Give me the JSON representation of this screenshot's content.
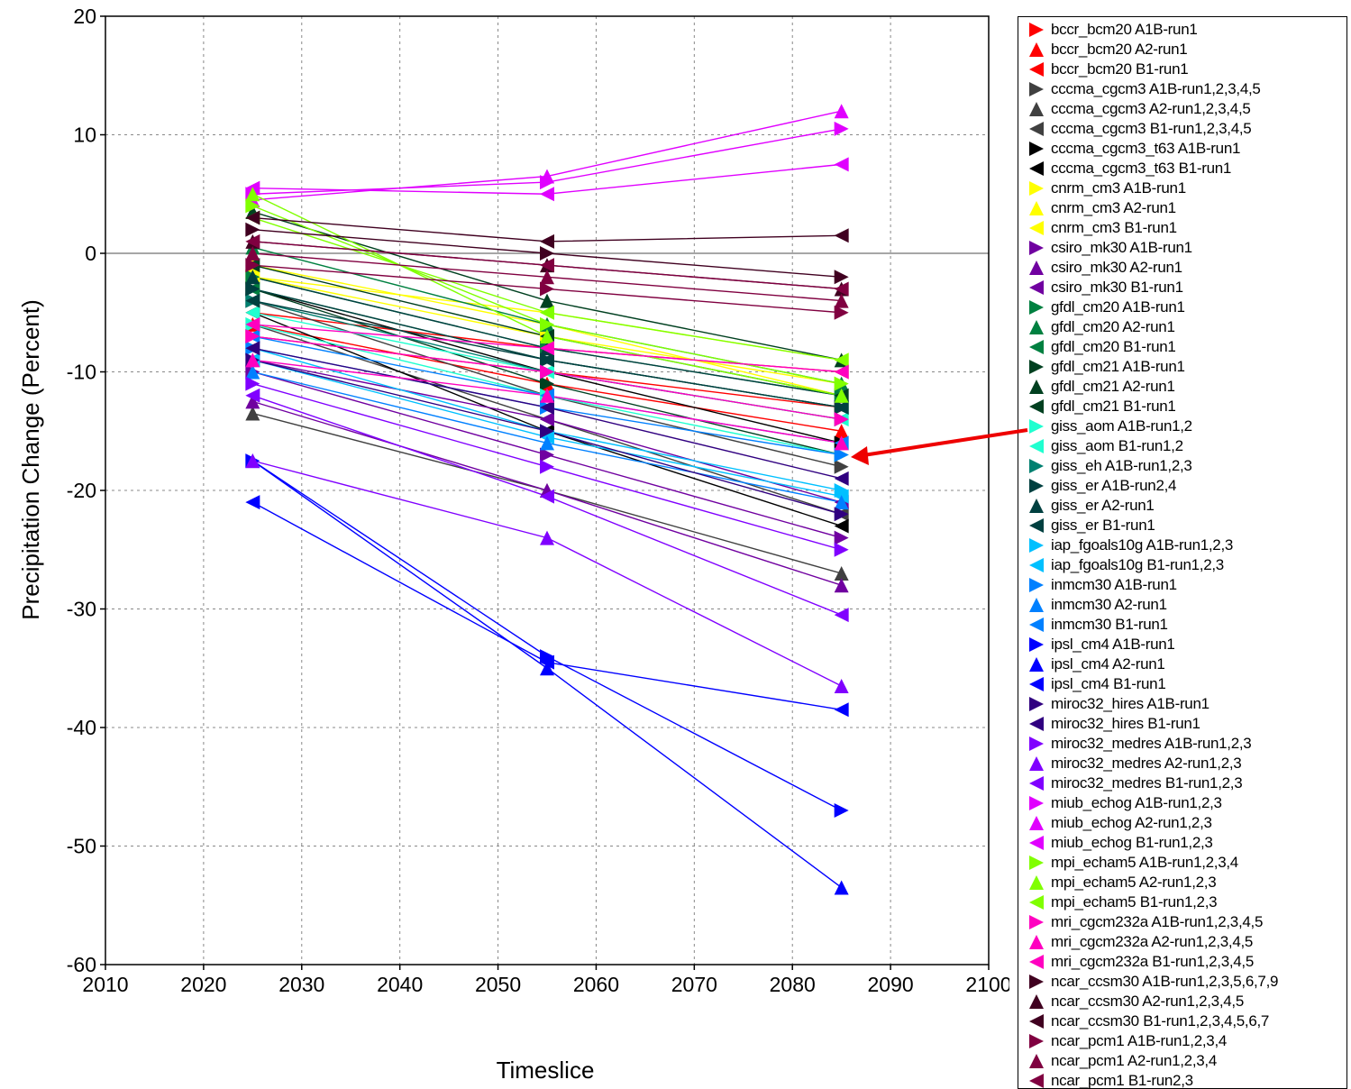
{
  "chart_data": {
    "type": "line",
    "xlabel": "Timeslice",
    "ylabel": "Precipitation Change (Percent)",
    "xlim": [
      2010,
      2100
    ],
    "ylim": [
      -60,
      20
    ],
    "x_ticks": [
      2010,
      2020,
      2030,
      2040,
      2050,
      2060,
      2070,
      2080,
      2090,
      2100
    ],
    "y_ticks": [
      20,
      10,
      0,
      -10,
      -20,
      -30,
      -40,
      -50,
      -60
    ],
    "grid": true,
    "legend_placement": "right",
    "x": [
      2025,
      2055,
      2085
    ],
    "series": [
      {
        "name": "bccr_bcm20 A1B-run1",
        "color": "#ff0000",
        "marker": "right",
        "values": [
          -7,
          -10,
          -13
        ]
      },
      {
        "name": "bccr_bcm20 A2-run1",
        "color": "#ff0000",
        "marker": "up",
        "values": [
          -6,
          -11,
          -15
        ]
      },
      {
        "name": "bccr_bcm20 B1-run1",
        "color": "#ff0000",
        "marker": "left",
        "values": [
          -5,
          -8,
          -10
        ]
      },
      {
        "name": "cccma_cgcm3 A1B-run1,2,3,4,5",
        "color": "#404040",
        "marker": "right",
        "values": [
          -4,
          -12,
          -18
        ]
      },
      {
        "name": "cccma_cgcm3 A2-run1,2,3,4,5",
        "color": "#404040",
        "marker": "up",
        "values": [
          -13.5,
          -20,
          -27
        ]
      },
      {
        "name": "cccma_cgcm3 B1-run1,2,3,4,5",
        "color": "#404040",
        "marker": "left",
        "values": [
          -6,
          -14,
          -22
        ]
      },
      {
        "name": "cccma_cgcm3_t63 A1B-run1",
        "color": "#000000",
        "marker": "right",
        "values": [
          -3,
          -10,
          -16
        ]
      },
      {
        "name": "cccma_cgcm3_t63 B1-run1",
        "color": "#000000",
        "marker": "left",
        "values": [
          -5,
          -15,
          -23
        ]
      },
      {
        "name": "cnrm_cm3 A1B-run1",
        "color": "#ffff00",
        "marker": "right",
        "values": [
          -2,
          -7,
          -11
        ]
      },
      {
        "name": "cnrm_cm3 A2-run1",
        "color": "#ffff00",
        "marker": "up",
        "values": [
          -1,
          -6,
          -12
        ]
      },
      {
        "name": "cnrm_cm3 B1-run1",
        "color": "#ffff00",
        "marker": "left",
        "values": [
          -2,
          -5,
          -9
        ]
      },
      {
        "name": "csiro_mk30 A1B-run1",
        "color": "#7000a0",
        "marker": "right",
        "values": [
          -10,
          -17,
          -24
        ]
      },
      {
        "name": "csiro_mk30 A2-run1",
        "color": "#7000a0",
        "marker": "up",
        "values": [
          -12.5,
          -20,
          -28
        ]
      },
      {
        "name": "csiro_mk30 B1-run1",
        "color": "#7000a0",
        "marker": "left",
        "values": [
          -9,
          -14,
          -21
        ]
      },
      {
        "name": "gfdl_cm20 A1B-run1",
        "color": "#008040",
        "marker": "right",
        "values": [
          -2,
          -8,
          -12
        ]
      },
      {
        "name": "gfdl_cm20 A2-run1",
        "color": "#008040",
        "marker": "up",
        "values": [
          0.5,
          -6,
          -11
        ]
      },
      {
        "name": "gfdl_cm20 B1-run1",
        "color": "#008040",
        "marker": "left",
        "values": [
          -3,
          -9,
          -13
        ]
      },
      {
        "name": "gfdl_cm21 A1B-run1",
        "color": "#004020",
        "marker": "right",
        "values": [
          -3,
          -11,
          -17
        ]
      },
      {
        "name": "gfdl_cm21 A2-run1",
        "color": "#004020",
        "marker": "up",
        "values": [
          3.5,
          -4,
          -9
        ]
      },
      {
        "name": "gfdl_cm21 B1-run1",
        "color": "#004020",
        "marker": "left",
        "values": [
          -1,
          -7,
          -12
        ]
      },
      {
        "name": "giss_aom A1B-run1,2",
        "color": "#20ffd0",
        "marker": "right",
        "values": [
          -6,
          -12,
          -17
        ]
      },
      {
        "name": "giss_aom B1-run1,2",
        "color": "#20ffd0",
        "marker": "left",
        "values": [
          -5,
          -10,
          -14
        ]
      },
      {
        "name": "giss_eh A1B-run1,2,3",
        "color": "#008070",
        "marker": "right",
        "values": [
          -4,
          -10,
          -14
        ]
      },
      {
        "name": "giss_er A1B-run2,4",
        "color": "#004040",
        "marker": "right",
        "values": [
          -3,
          -9,
          -13
        ]
      },
      {
        "name": "giss_er A2-run1",
        "color": "#004040",
        "marker": "up",
        "values": [
          -2,
          -8,
          -12
        ]
      },
      {
        "name": "giss_er B1-run1",
        "color": "#004040",
        "marker": "left",
        "values": [
          -4,
          -9,
          -13
        ]
      },
      {
        "name": "iap_fgoals10g A1B-run1,2,3",
        "color": "#00c0ff",
        "marker": "right",
        "values": [
          -8,
          -15,
          -20
        ]
      },
      {
        "name": "iap_fgoals10g B1-run1,2,3",
        "color": "#00c0ff",
        "marker": "left",
        "values": [
          -9,
          -15.5,
          -20.5
        ]
      },
      {
        "name": "inmcm30 A1B-run1",
        "color": "#0080ff",
        "marker": "right",
        "values": [
          -8,
          -13,
          -17
        ]
      },
      {
        "name": "inmcm30 A2-run1",
        "color": "#0080ff",
        "marker": "up",
        "values": [
          -10,
          -16,
          -21
        ]
      },
      {
        "name": "inmcm30 B1-run1",
        "color": "#0080ff",
        "marker": "left",
        "values": [
          -7,
          -12,
          -16
        ]
      },
      {
        "name": "ipsl_cm4 A1B-run1",
        "color": "#0000ff",
        "marker": "right",
        "values": [
          -17.5,
          -34,
          -47
        ]
      },
      {
        "name": "ipsl_cm4 A2-run1",
        "color": "#0000ff",
        "marker": "up",
        "values": [
          -17.5,
          -35,
          -53.5
        ]
      },
      {
        "name": "ipsl_cm4 B1-run1",
        "color": "#0000ff",
        "marker": "left",
        "values": [
          -21,
          -34.5,
          -38.5
        ]
      },
      {
        "name": "miroc32_hires A1B-run1",
        "color": "#300080",
        "marker": "right",
        "values": [
          -9,
          -15,
          -22
        ]
      },
      {
        "name": "miroc32_hires B1-run1",
        "color": "#300080",
        "marker": "left",
        "values": [
          -8,
          -13,
          -19
        ]
      },
      {
        "name": "miroc32_medres A1B-run1,2,3",
        "color": "#8000ff",
        "marker": "right",
        "values": [
          -11,
          -18,
          -25
        ]
      },
      {
        "name": "miroc32_medres A2-run1,2,3",
        "color": "#8000ff",
        "marker": "up",
        "values": [
          -17.5,
          -24,
          -36.5
        ]
      },
      {
        "name": "miroc32_medres B1-run1,2,3",
        "color": "#8000ff",
        "marker": "left",
        "values": [
          -12,
          -20.5,
          -30.5
        ]
      },
      {
        "name": "miub_echog A1B-run1,2,3",
        "color": "#e000ff",
        "marker": "right",
        "values": [
          5,
          6,
          10.5
        ]
      },
      {
        "name": "miub_echog A2-run1,2,3",
        "color": "#e000ff",
        "marker": "up",
        "values": [
          4.5,
          6.5,
          12
        ]
      },
      {
        "name": "miub_echog B1-run1,2,3",
        "color": "#e000ff",
        "marker": "left",
        "values": [
          5.5,
          5,
          7.5
        ]
      },
      {
        "name": "mpi_echam5 A1B-run1,2,3,4",
        "color": "#80ff00",
        "marker": "right",
        "values": [
          4,
          -6,
          -11
        ]
      },
      {
        "name": "mpi_echam5 A2-run1,2,3",
        "color": "#80ff00",
        "marker": "up",
        "values": [
          5,
          -7,
          -12
        ]
      },
      {
        "name": "mpi_echam5 B1-run1,2,3",
        "color": "#80ff00",
        "marker": "left",
        "values": [
          3,
          -5,
          -9
        ]
      },
      {
        "name": "mri_cgcm232a A1B-run1,2,3,4,5",
        "color": "#ff00c0",
        "marker": "right",
        "values": [
          -7,
          -10,
          -14
        ]
      },
      {
        "name": "mri_cgcm232a A2-run1,2,3,4,5",
        "color": "#ff00c0",
        "marker": "up",
        "values": [
          -9,
          -12,
          -16
        ]
      },
      {
        "name": "mri_cgcm232a B1-run1,2,3,4,5",
        "color": "#ff00c0",
        "marker": "left",
        "values": [
          -6,
          -8,
          -10
        ]
      },
      {
        "name": "ncar_ccsm30 A1B-run1,2,3,5,6,7,9",
        "color": "#400020",
        "marker": "right",
        "values": [
          2,
          0,
          -2
        ]
      },
      {
        "name": "ncar_ccsm30 A2-run1,2,3,4,5",
        "color": "#400020",
        "marker": "up",
        "values": [
          1,
          -1,
          -3
        ]
      },
      {
        "name": "ncar_ccsm30 B1-run1,2,3,4,5,6,7",
        "color": "#400020",
        "marker": "left",
        "values": [
          3,
          1,
          1.5
        ]
      },
      {
        "name": "ncar_pcm1 A1B-run1,2,3,4",
        "color": "#800040",
        "marker": "right",
        "values": [
          -1,
          -3,
          -5
        ]
      },
      {
        "name": "ncar_pcm1 A2-run1,2,3,4",
        "color": "#800040",
        "marker": "up",
        "values": [
          0,
          -2,
          -4
        ]
      },
      {
        "name": "ncar_pcm1 B1-run2,3",
        "color": "#800040",
        "marker": "left",
        "values": [
          1,
          -1,
          -3
        ]
      }
    ]
  }
}
